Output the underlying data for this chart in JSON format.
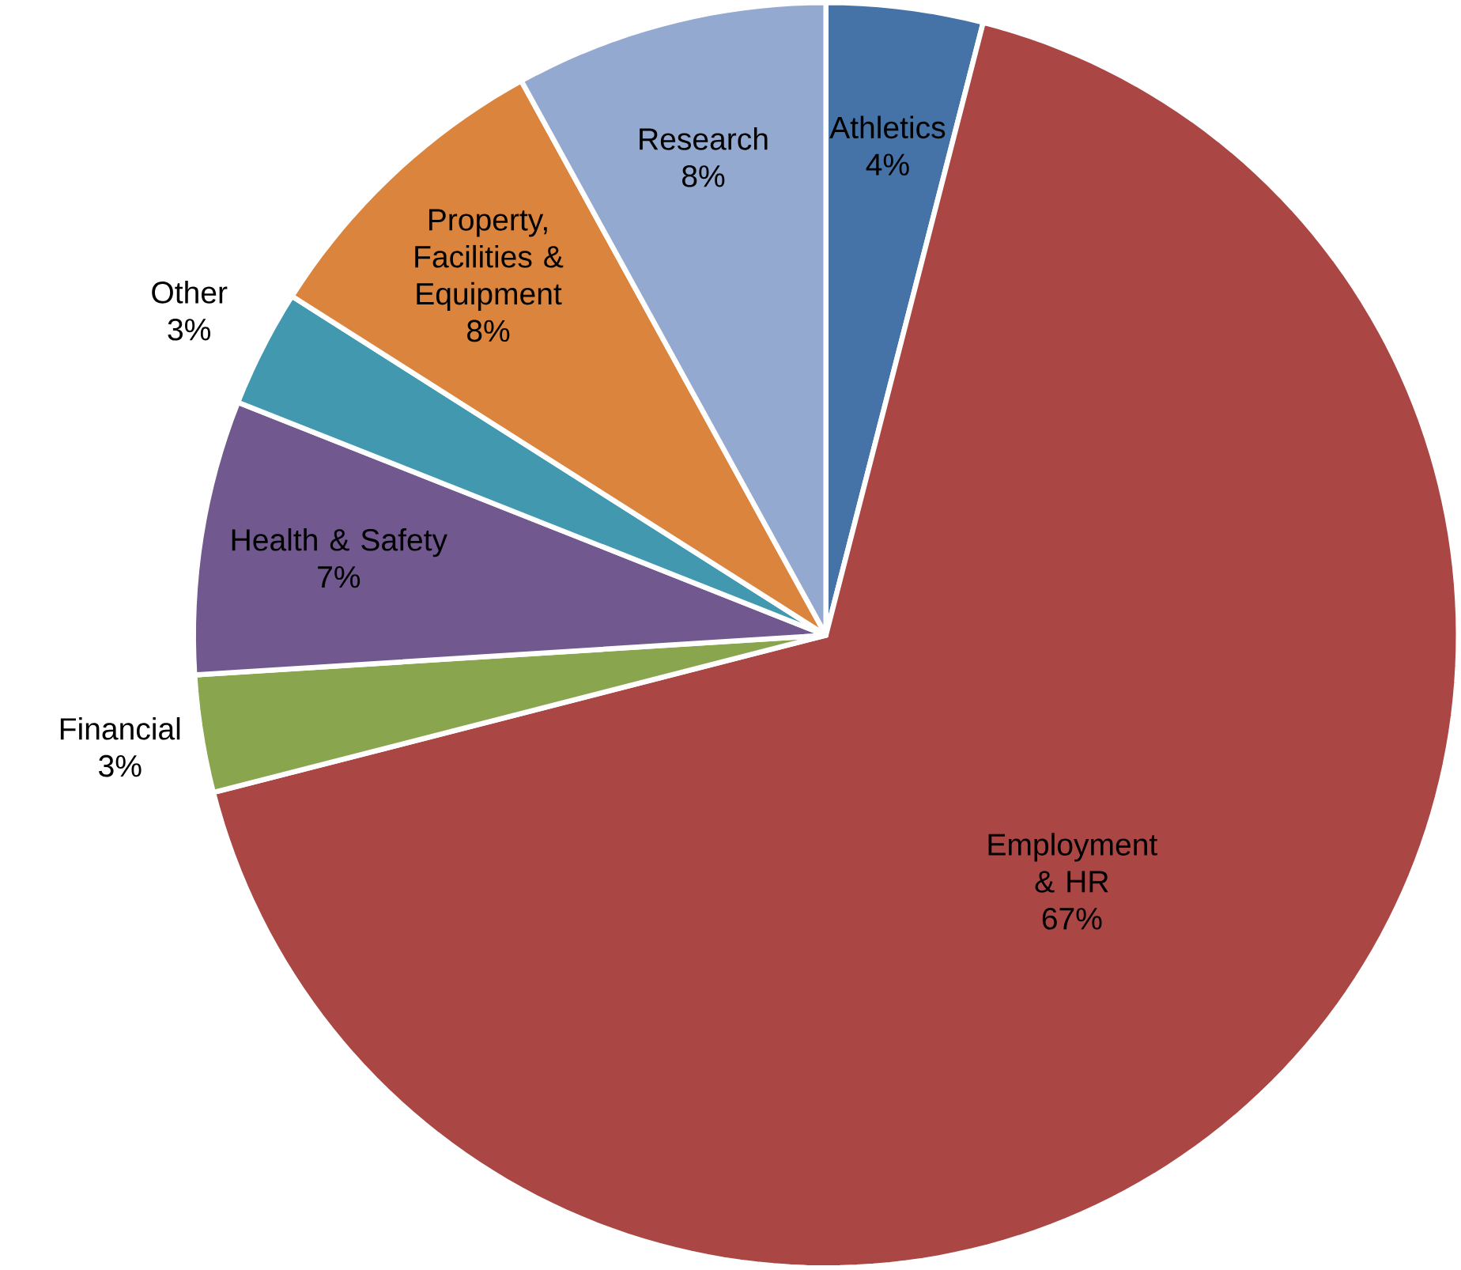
{
  "chart_data": {
    "type": "pie",
    "categories": [
      "Athletics",
      "Employment & HR",
      "Financial",
      "Health & Safety",
      "Other",
      "Property, Facilities & Equipment",
      "Research"
    ],
    "values": [
      4,
      67,
      3,
      7,
      3,
      8,
      8
    ],
    "value_labels": [
      "4%",
      "67%",
      "3%",
      "7%",
      "3%",
      "8%",
      "8%"
    ],
    "colors": [
      "#4572a7",
      "#aa4643",
      "#89a54e",
      "#71588f",
      "#4198af",
      "#db843d",
      "#93a9cf"
    ]
  }
}
